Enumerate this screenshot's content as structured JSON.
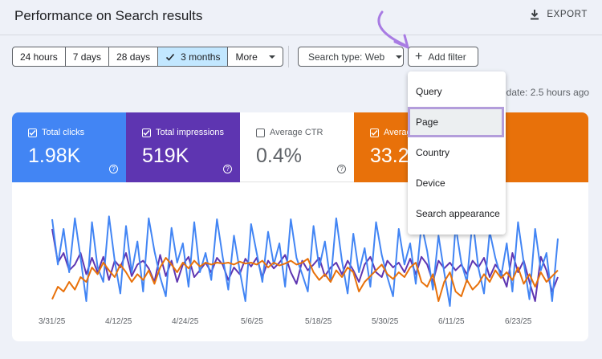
{
  "header": {
    "title": "Performance on Search results",
    "export_label": "EXPORT"
  },
  "date_range": {
    "options": [
      "24 hours",
      "7 days",
      "28 days",
      "3 months",
      "More"
    ],
    "selected": "3 months"
  },
  "search_type": {
    "label": "Search type: Web"
  },
  "add_filter": {
    "label": "Add filter"
  },
  "last_update": "pdate: 2.5 hours ago",
  "metrics": [
    {
      "label": "Total clicks",
      "value": "1.98K",
      "checked": true,
      "color": "#4285f4"
    },
    {
      "label": "Total impressions",
      "value": "519K",
      "checked": true,
      "color": "#5e35b1"
    },
    {
      "label": "Average CTR",
      "value": "0.4%",
      "checked": false,
      "color": "#ffffff"
    },
    {
      "label": "Averag",
      "value": "33.2",
      "checked": true,
      "color": "#e8710a"
    }
  ],
  "filter_menu": {
    "items": [
      "Query",
      "Page",
      "Country",
      "Device",
      "Search appearance"
    ],
    "highlighted": "Page"
  },
  "chart_data": {
    "type": "line",
    "x_ticks": [
      "3/31/25",
      "4/12/25",
      "4/24/25",
      "5/6/25",
      "5/18/25",
      "5/30/25",
      "6/11/25",
      "6/23/25"
    ],
    "series": [
      {
        "color": "#5e35b1",
        "values": [
          0.85,
          0.5,
          0.6,
          0.42,
          0.48,
          0.6,
          0.38,
          0.55,
          0.4,
          0.56,
          0.32,
          0.52,
          0.45,
          0.6,
          0.36,
          0.48,
          0.52,
          0.44,
          0.3,
          0.58,
          0.36,
          0.52,
          0.3,
          0.48,
          0.56,
          0.35,
          0.42,
          0.5,
          0.4,
          0.55,
          0.48,
          0.32,
          0.45,
          0.38,
          0.54,
          0.46,
          0.55,
          0.35,
          0.52,
          0.44,
          0.5,
          0.58,
          0.4,
          0.28,
          0.52,
          0.42,
          0.48,
          0.55,
          0.36,
          0.45,
          0.5,
          0.38,
          0.52,
          0.42,
          0.3,
          0.48,
          0.56,
          0.4,
          0.35,
          0.52,
          0.45,
          0.5,
          0.4,
          0.54,
          0.38,
          0.56,
          0.48,
          0.3,
          0.52,
          0.44,
          0.5,
          0.42,
          0.48,
          0.38,
          0.52,
          0.45,
          0.55,
          0.35,
          0.48,
          0.4,
          0.25,
          0.6,
          0.4,
          0.52,
          0.3,
          0.1,
          0.56,
          0.42,
          0.2,
          0.35
        ]
      },
      {
        "color": "#4285f4",
        "values": [
          0.95,
          0.48,
          0.85,
          0.4,
          0.96,
          0.55,
          0.1,
          0.92,
          0.45,
          0.3,
          0.98,
          0.52,
          0.18,
          0.88,
          0.4,
          0.72,
          0.2,
          0.96,
          0.62,
          0.35,
          0.15,
          0.86,
          0.5,
          0.7,
          0.25,
          0.92,
          0.4,
          0.6,
          0.32,
          0.95,
          0.56,
          0.22,
          0.78,
          0.42,
          0.1,
          0.9,
          0.6,
          0.3,
          0.82,
          0.48,
          0.7,
          0.25,
          0.95,
          0.55,
          0.38,
          0.2,
          0.88,
          0.45,
          0.72,
          0.3,
          0.96,
          0.52,
          0.18,
          0.8,
          0.4,
          0.65,
          0.25,
          0.92,
          0.58,
          0.35,
          0.15,
          0.85,
          0.48,
          0.7,
          0.28,
          0.9,
          0.62,
          0.22,
          0.78,
          0.4,
          0.05,
          0.88,
          0.5,
          0.3,
          0.95,
          0.45,
          0.18,
          0.82,
          0.55,
          0.35,
          0.7,
          0.2,
          0.92,
          0.5,
          0.12,
          0.85,
          0.42,
          0.6,
          0.1,
          0.75
        ]
      },
      {
        "color": "#e8710a",
        "values": [
          0.12,
          0.25,
          0.2,
          0.3,
          0.22,
          0.35,
          0.3,
          0.45,
          0.38,
          0.5,
          0.42,
          0.35,
          0.48,
          0.4,
          0.3,
          0.38,
          0.32,
          0.42,
          0.28,
          0.45,
          0.55,
          0.48,
          0.4,
          0.5,
          0.44,
          0.52,
          0.46,
          0.5,
          0.48,
          0.5,
          0.49,
          0.5,
          0.48,
          0.51,
          0.49,
          0.5,
          0.48,
          0.52,
          0.45,
          0.5,
          0.47,
          0.49,
          0.52,
          0.48,
          0.5,
          0.54,
          0.4,
          0.32,
          0.38,
          0.3,
          0.42,
          0.35,
          0.45,
          0.4,
          0.2,
          0.3,
          0.36,
          0.42,
          0.48,
          0.38,
          0.33,
          0.4,
          0.35,
          0.45,
          0.5,
          0.3,
          0.25,
          0.38,
          0.1,
          0.3,
          0.4,
          0.2,
          0.15,
          0.32,
          0.22,
          0.28,
          0.38,
          0.3,
          0.42,
          0.34,
          0.4,
          0.32,
          0.45,
          0.28,
          0.38,
          0.25,
          0.4,
          0.3,
          0.36,
          0.42
        ]
      }
    ]
  }
}
